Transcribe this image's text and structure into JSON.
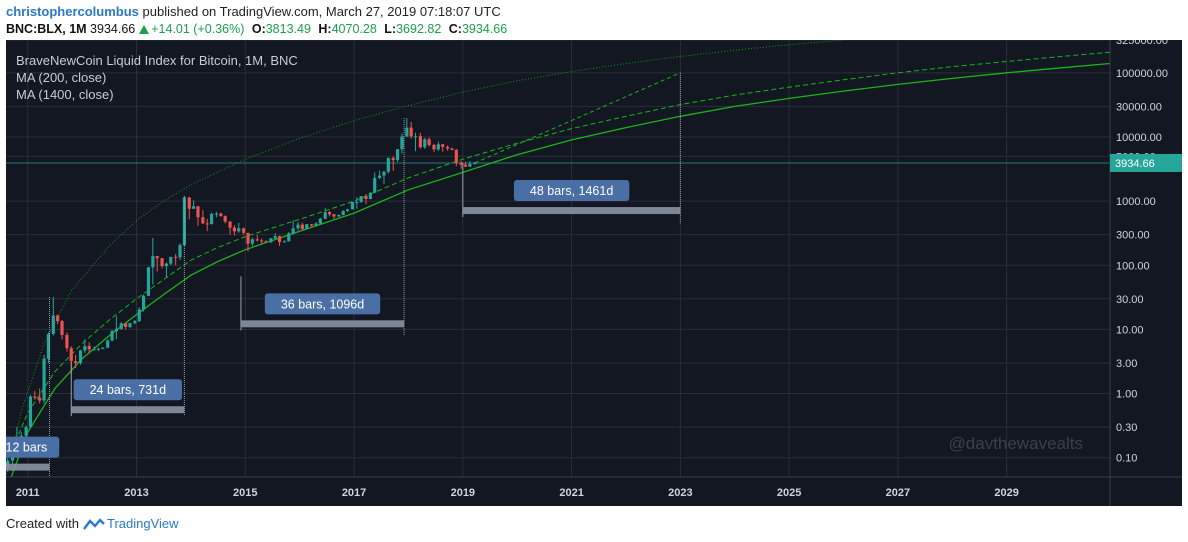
{
  "header": {
    "author": "christophercolumbus",
    "published_text": "published on TradingView.com, March 27, 2019 07:18:07 UTC",
    "symbol": "BNC:BLX, 1M",
    "last": "3934.66",
    "change": "+14.01 (+0.36%)",
    "open_label": "O:",
    "open": "3813.49",
    "high_label": "H:",
    "high": "4070.28",
    "low_label": "L:",
    "low": "3692.82",
    "close_label": "C:",
    "close": "3934.66"
  },
  "legend": {
    "title": "BraveNewCoin Liquid Index for Bitcoin, 1M, BNC",
    "ma1": "MA (200, close)",
    "ma2": "MA (1400, close)"
  },
  "watermark": "@davthewavealts",
  "footer": {
    "created_with": "Created with",
    "brand": "TradingView"
  },
  "colors": {
    "background": "#131722",
    "grid": "#2a2e39",
    "up": "#26a69a",
    "down": "#ef5350",
    "ma_line": "#1ab31a",
    "measure_label": "#4a6fa5",
    "measure_bar": "#8a93a3",
    "price_tag": "#26a69a",
    "text": "#c0c4cc",
    "axis_text": "#d1d4dc"
  },
  "chart_data": {
    "type": "candlestick",
    "y_scale": "log",
    "ylim": [
      0.05,
      325000
    ],
    "y_ticks": [
      "325000.00",
      "100000.00",
      "30000.00",
      "10000.00",
      "5000.00",
      "1000.00",
      "300.00",
      "100.00",
      "30.00",
      "10.00",
      "3.00",
      "1.00",
      "0.30",
      "0.10"
    ],
    "x_ticks": [
      "2011",
      "2013",
      "2015",
      "2017",
      "2019",
      "2021",
      "2023",
      "2025",
      "2027",
      "2029"
    ],
    "xlim": [
      2010.6,
      2030.9
    ],
    "last_price_tag": "3934.66",
    "last_price": 3934.66,
    "candles": [
      {
        "t": 2010.55,
        "o": 0.06,
        "h": 0.08,
        "l": 0.05,
        "c": 0.07
      },
      {
        "t": 2010.63,
        "o": 0.07,
        "h": 0.1,
        "l": 0.06,
        "c": 0.09
      },
      {
        "t": 2010.72,
        "o": 0.09,
        "h": 0.12,
        "l": 0.08,
        "c": 0.11
      },
      {
        "t": 2010.8,
        "o": 0.11,
        "h": 0.3,
        "l": 0.1,
        "c": 0.2
      },
      {
        "t": 2010.88,
        "o": 0.2,
        "h": 0.25,
        "l": 0.18,
        "c": 0.22
      },
      {
        "t": 2010.97,
        "o": 0.22,
        "h": 0.32,
        "l": 0.2,
        "c": 0.3
      },
      {
        "t": 2011.05,
        "o": 0.3,
        "h": 0.95,
        "l": 0.28,
        "c": 0.9
      },
      {
        "t": 2011.13,
        "o": 0.9,
        "h": 1.1,
        "l": 0.8,
        "c": 0.86
      },
      {
        "t": 2011.22,
        "o": 0.86,
        "h": 1.2,
        "l": 0.7,
        "c": 0.78
      },
      {
        "t": 2011.3,
        "o": 0.78,
        "h": 4.0,
        "l": 0.7,
        "c": 3.5
      },
      {
        "t": 2011.38,
        "o": 3.5,
        "h": 9.0,
        "l": 3.0,
        "c": 8.5
      },
      {
        "t": 2011.47,
        "o": 8.5,
        "h": 32.0,
        "l": 8.0,
        "c": 16.5
      },
      {
        "t": 2011.55,
        "o": 16.5,
        "h": 17.0,
        "l": 12.0,
        "c": 13.5
      },
      {
        "t": 2011.63,
        "o": 13.5,
        "h": 14.0,
        "l": 7.0,
        "c": 8.2
      },
      {
        "t": 2011.72,
        "o": 8.2,
        "h": 9.0,
        "l": 4.5,
        "c": 5.1
      },
      {
        "t": 2011.8,
        "o": 5.1,
        "h": 5.5,
        "l": 2.0,
        "c": 3.2
      },
      {
        "t": 2011.88,
        "o": 3.2,
        "h": 4.0,
        "l": 2.5,
        "c": 3.0
      },
      {
        "t": 2011.97,
        "o": 3.0,
        "h": 4.8,
        "l": 2.8,
        "c": 4.7
      },
      {
        "t": 2012.05,
        "o": 4.7,
        "h": 7.0,
        "l": 4.3,
        "c": 5.5
      },
      {
        "t": 2012.13,
        "o": 5.5,
        "h": 6.3,
        "l": 4.2,
        "c": 4.9
      },
      {
        "t": 2012.22,
        "o": 4.9,
        "h": 5.4,
        "l": 4.7,
        "c": 4.9
      },
      {
        "t": 2012.3,
        "o": 4.9,
        "h": 5.2,
        "l": 4.6,
        "c": 5.0
      },
      {
        "t": 2012.38,
        "o": 5.0,
        "h": 5.3,
        "l": 4.9,
        "c": 5.2
      },
      {
        "t": 2012.47,
        "o": 5.2,
        "h": 7.0,
        "l": 5.1,
        "c": 6.7
      },
      {
        "t": 2012.55,
        "o": 6.7,
        "h": 9.8,
        "l": 6.5,
        "c": 9.4
      },
      {
        "t": 2012.63,
        "o": 9.4,
        "h": 16.0,
        "l": 7.0,
        "c": 10.2
      },
      {
        "t": 2012.72,
        "o": 10.2,
        "h": 13.0,
        "l": 9.8,
        "c": 12.4
      },
      {
        "t": 2012.8,
        "o": 12.4,
        "h": 12.5,
        "l": 9.9,
        "c": 10.9
      },
      {
        "t": 2012.88,
        "o": 10.9,
        "h": 12.7,
        "l": 10.5,
        "c": 12.5
      },
      {
        "t": 2012.97,
        "o": 12.5,
        "h": 14.0,
        "l": 12.0,
        "c": 13.5
      },
      {
        "t": 2013.05,
        "o": 13.5,
        "h": 22.0,
        "l": 13.0,
        "c": 20.4
      },
      {
        "t": 2013.13,
        "o": 20.4,
        "h": 35.0,
        "l": 19.0,
        "c": 33.4
      },
      {
        "t": 2013.22,
        "o": 33.4,
        "h": 95.0,
        "l": 33.0,
        "c": 93.0
      },
      {
        "t": 2013.3,
        "o": 93.0,
        "h": 266.0,
        "l": 50.0,
        "c": 139.0
      },
      {
        "t": 2013.38,
        "o": 139.0,
        "h": 140.0,
        "l": 80.0,
        "c": 129.0
      },
      {
        "t": 2013.47,
        "o": 129.0,
        "h": 130.0,
        "l": 90.0,
        "c": 97.0
      },
      {
        "t": 2013.55,
        "o": 97.0,
        "h": 111.0,
        "l": 65.0,
        "c": 106.0
      },
      {
        "t": 2013.63,
        "o": 106.0,
        "h": 136.0,
        "l": 100.0,
        "c": 135.0
      },
      {
        "t": 2013.72,
        "o": 135.0,
        "h": 150.0,
        "l": 100.0,
        "c": 133.0
      },
      {
        "t": 2013.8,
        "o": 133.0,
        "h": 220.0,
        "l": 120.0,
        "c": 206.0
      },
      {
        "t": 2013.88,
        "o": 206.0,
        "h": 1200.0,
        "l": 200.0,
        "c": 1140.0
      },
      {
        "t": 2013.97,
        "o": 1140.0,
        "h": 1160.0,
        "l": 520.0,
        "c": 760.0
      },
      {
        "t": 2014.05,
        "o": 760.0,
        "h": 1030.0,
        "l": 750.0,
        "c": 830.0
      },
      {
        "t": 2014.13,
        "o": 830.0,
        "h": 840.0,
        "l": 410.0,
        "c": 560.0
      },
      {
        "t": 2014.22,
        "o": 560.0,
        "h": 720.0,
        "l": 440.0,
        "c": 450.0
      },
      {
        "t": 2014.3,
        "o": 450.0,
        "h": 530.0,
        "l": 340.0,
        "c": 440.0
      },
      {
        "t": 2014.38,
        "o": 440.0,
        "h": 660.0,
        "l": 430.0,
        "c": 630.0
      },
      {
        "t": 2014.47,
        "o": 630.0,
        "h": 680.0,
        "l": 560.0,
        "c": 640.0
      },
      {
        "t": 2014.55,
        "o": 640.0,
        "h": 660.0,
        "l": 570.0,
        "c": 585.0
      },
      {
        "t": 2014.63,
        "o": 585.0,
        "h": 600.0,
        "l": 450.0,
        "c": 480.0
      },
      {
        "t": 2014.72,
        "o": 480.0,
        "h": 490.0,
        "l": 300.0,
        "c": 386.0
      },
      {
        "t": 2014.8,
        "o": 386.0,
        "h": 420.0,
        "l": 290.0,
        "c": 338.0
      },
      {
        "t": 2014.88,
        "o": 338.0,
        "h": 460.0,
        "l": 320.0,
        "c": 377.0
      },
      {
        "t": 2014.97,
        "o": 377.0,
        "h": 385.0,
        "l": 300.0,
        "c": 320.0
      },
      {
        "t": 2015.05,
        "o": 320.0,
        "h": 320.0,
        "l": 165.0,
        "c": 217.0
      },
      {
        "t": 2015.13,
        "o": 217.0,
        "h": 270.0,
        "l": 200.0,
        "c": 254.0
      },
      {
        "t": 2015.22,
        "o": 254.0,
        "h": 300.0,
        "l": 235.0,
        "c": 244.0
      },
      {
        "t": 2015.3,
        "o": 244.0,
        "h": 260.0,
        "l": 215.0,
        "c": 236.0
      },
      {
        "t": 2015.38,
        "o": 236.0,
        "h": 247.0,
        "l": 225.0,
        "c": 230.0
      },
      {
        "t": 2015.47,
        "o": 230.0,
        "h": 267.0,
        "l": 220.0,
        "c": 263.0
      },
      {
        "t": 2015.55,
        "o": 263.0,
        "h": 316.0,
        "l": 255.0,
        "c": 284.0
      },
      {
        "t": 2015.63,
        "o": 284.0,
        "h": 290.0,
        "l": 200.0,
        "c": 230.0
      },
      {
        "t": 2015.72,
        "o": 230.0,
        "h": 245.0,
        "l": 225.0,
        "c": 236.0
      },
      {
        "t": 2015.8,
        "o": 236.0,
        "h": 330.0,
        "l": 235.0,
        "c": 314.0
      },
      {
        "t": 2015.88,
        "o": 314.0,
        "h": 500.0,
        "l": 300.0,
        "c": 377.0
      },
      {
        "t": 2015.97,
        "o": 377.0,
        "h": 470.0,
        "l": 350.0,
        "c": 430.0
      },
      {
        "t": 2016.05,
        "o": 430.0,
        "h": 460.0,
        "l": 350.0,
        "c": 368.0
      },
      {
        "t": 2016.13,
        "o": 368.0,
        "h": 440.0,
        "l": 365.0,
        "c": 437.0
      },
      {
        "t": 2016.22,
        "o": 437.0,
        "h": 440.0,
        "l": 400.0,
        "c": 416.0
      },
      {
        "t": 2016.3,
        "o": 416.0,
        "h": 470.0,
        "l": 410.0,
        "c": 448.0
      },
      {
        "t": 2016.38,
        "o": 448.0,
        "h": 550.0,
        "l": 440.0,
        "c": 531.0
      },
      {
        "t": 2016.47,
        "o": 531.0,
        "h": 780.0,
        "l": 520.0,
        "c": 673.0
      },
      {
        "t": 2016.55,
        "o": 673.0,
        "h": 700.0,
        "l": 580.0,
        "c": 624.0
      },
      {
        "t": 2016.63,
        "o": 624.0,
        "h": 630.0,
        "l": 530.0,
        "c": 575.0
      },
      {
        "t": 2016.72,
        "o": 575.0,
        "h": 620.0,
        "l": 570.0,
        "c": 608.0
      },
      {
        "t": 2016.8,
        "o": 608.0,
        "h": 720.0,
        "l": 600.0,
        "c": 700.0
      },
      {
        "t": 2016.88,
        "o": 700.0,
        "h": 760.0,
        "l": 680.0,
        "c": 745.0
      },
      {
        "t": 2016.97,
        "o": 745.0,
        "h": 975.0,
        "l": 740.0,
        "c": 964.0
      },
      {
        "t": 2017.05,
        "o": 964.0,
        "h": 1150.0,
        "l": 760.0,
        "c": 970.0
      },
      {
        "t": 2017.13,
        "o": 970.0,
        "h": 1200.0,
        "l": 940.0,
        "c": 1190.0
      },
      {
        "t": 2017.22,
        "o": 1190.0,
        "h": 1290.0,
        "l": 900.0,
        "c": 1080.0
      },
      {
        "t": 2017.3,
        "o": 1080.0,
        "h": 1380.0,
        "l": 1070.0,
        "c": 1350.0
      },
      {
        "t": 2017.38,
        "o": 1350.0,
        "h": 2800.0,
        "l": 1340.0,
        "c": 2300.0
      },
      {
        "t": 2017.47,
        "o": 2300.0,
        "h": 3000.0,
        "l": 2200.0,
        "c": 2500.0
      },
      {
        "t": 2017.55,
        "o": 2500.0,
        "h": 2950.0,
        "l": 1850.0,
        "c": 2870.0
      },
      {
        "t": 2017.63,
        "o": 2870.0,
        "h": 4770.0,
        "l": 2700.0,
        "c": 4730.0
      },
      {
        "t": 2017.72,
        "o": 4730.0,
        "h": 4980.0,
        "l": 2980.0,
        "c": 4360.0
      },
      {
        "t": 2017.8,
        "o": 4360.0,
        "h": 6470.0,
        "l": 4100.0,
        "c": 6450.0
      },
      {
        "t": 2017.88,
        "o": 6450.0,
        "h": 11300.0,
        "l": 5500.0,
        "c": 10200.0
      },
      {
        "t": 2017.97,
        "o": 10200.0,
        "h": 19700.0,
        "l": 10000.0,
        "c": 14000.0
      },
      {
        "t": 2018.05,
        "o": 14000.0,
        "h": 17200.0,
        "l": 9400.0,
        "c": 10200.0
      },
      {
        "t": 2018.13,
        "o": 10200.0,
        "h": 11700.0,
        "l": 6000.0,
        "c": 10300.0
      },
      {
        "t": 2018.22,
        "o": 10300.0,
        "h": 11600.0,
        "l": 6600.0,
        "c": 6900.0
      },
      {
        "t": 2018.3,
        "o": 6900.0,
        "h": 9700.0,
        "l": 6500.0,
        "c": 9200.0
      },
      {
        "t": 2018.38,
        "o": 9200.0,
        "h": 9900.0,
        "l": 7100.0,
        "c": 7500.0
      },
      {
        "t": 2018.47,
        "o": 7500.0,
        "h": 7800.0,
        "l": 5800.0,
        "c": 6400.0
      },
      {
        "t": 2018.55,
        "o": 6400.0,
        "h": 8500.0,
        "l": 6100.0,
        "c": 7700.0
      },
      {
        "t": 2018.63,
        "o": 7700.0,
        "h": 7800.0,
        "l": 5900.0,
        "c": 7000.0
      },
      {
        "t": 2018.72,
        "o": 7000.0,
        "h": 7400.0,
        "l": 6100.0,
        "c": 6600.0
      },
      {
        "t": 2018.8,
        "o": 6600.0,
        "h": 6800.0,
        "l": 6200.0,
        "c": 6300.0
      },
      {
        "t": 2018.88,
        "o": 6300.0,
        "h": 6500.0,
        "l": 3500.0,
        "c": 4000.0
      },
      {
        "t": 2018.97,
        "o": 4000.0,
        "h": 4200.0,
        "l": 3200.0,
        "c": 3700.0
      },
      {
        "t": 2019.05,
        "o": 3700.0,
        "h": 4100.0,
        "l": 3400.0,
        "c": 3450.0
      },
      {
        "t": 2019.13,
        "o": 3450.0,
        "h": 4200.0,
        "l": 3400.0,
        "c": 3813.0
      },
      {
        "t": 2019.22,
        "o": 3813.49,
        "h": 4070.28,
        "l": 3692.82,
        "c": 3934.66
      }
    ],
    "ma200": [
      [
        2010.6,
        0.03
      ],
      [
        2011.0,
        0.25
      ],
      [
        2011.5,
        1.2
      ],
      [
        2012.0,
        3.5
      ],
      [
        2012.5,
        8.0
      ],
      [
        2013.0,
        17.0
      ],
      [
        2013.5,
        35.0
      ],
      [
        2014.0,
        70.0
      ],
      [
        2014.5,
        115.0
      ],
      [
        2015.0,
        175.0
      ],
      [
        2016.0,
        340.0
      ],
      [
        2017.0,
        650.0
      ],
      [
        2018.0,
        1500.0
      ],
      [
        2019.0,
        2800.0
      ],
      [
        2020.0,
        5300.0
      ],
      [
        2021.0,
        9000.0
      ],
      [
        2022.0,
        14000.0
      ],
      [
        2023.0,
        21000.0
      ],
      [
        2024.0,
        30000.0
      ],
      [
        2025.0,
        40000.0
      ],
      [
        2026.0,
        52000.0
      ],
      [
        2027.0,
        66000.0
      ],
      [
        2028.0,
        82000.0
      ],
      [
        2029.0,
        100000.0
      ],
      [
        2030.0,
        120000.0
      ],
      [
        2030.9,
        140000.0
      ]
    ],
    "ma1400": [
      [
        2010.6,
        0.08
      ],
      [
        2011.0,
        0.5
      ],
      [
        2011.5,
        2.2
      ],
      [
        2012.0,
        6.0
      ],
      [
        2012.5,
        14.0
      ],
      [
        2013.0,
        30.0
      ],
      [
        2013.5,
        60.0
      ],
      [
        2014.0,
        120.0
      ],
      [
        2014.5,
        190.0
      ],
      [
        2015.0,
        280.0
      ],
      [
        2016.0,
        520.0
      ],
      [
        2017.0,
        1000.0
      ],
      [
        2018.0,
        2300.0
      ],
      [
        2019.0,
        4500.0
      ],
      [
        2020.0,
        8000.0
      ],
      [
        2021.0,
        13500.0
      ],
      [
        2022.0,
        21000.0
      ],
      [
        2023.0,
        32000.0
      ],
      [
        2024.0,
        45000.0
      ],
      [
        2025.0,
        60000.0
      ],
      [
        2026.0,
        78000.0
      ],
      [
        2027.0,
        100000.0
      ],
      [
        2028.0,
        125000.0
      ],
      [
        2029.0,
        150000.0
      ],
      [
        2030.0,
        180000.0
      ],
      [
        2030.9,
        210000.0
      ]
    ],
    "upper_curve": [
      [
        2010.6,
        0.05
      ],
      [
        2010.9,
        0.6
      ],
      [
        2011.3,
        6.0
      ],
      [
        2011.8,
        40.0
      ],
      [
        2012.5,
        200.0
      ],
      [
        2013.0,
        500.0
      ],
      [
        2013.5,
        1000.0
      ],
      [
        2014.0,
        1800.0
      ],
      [
        2015.0,
        4500.0
      ],
      [
        2016.0,
        9500.0
      ],
      [
        2017.0,
        18000.0
      ],
      [
        2018.0,
        31000.0
      ],
      [
        2019.0,
        50000.0
      ],
      [
        2020.0,
        75000.0
      ],
      [
        2021.0,
        105000.0
      ],
      [
        2022.0,
        140000.0
      ],
      [
        2023.0,
        180000.0
      ],
      [
        2024.0,
        225000.0
      ],
      [
        2025.0,
        275000.0
      ],
      [
        2026.0,
        325000.0
      ],
      [
        2026.8,
        370000.0
      ]
    ],
    "projection": [
      [
        2019.22,
        3934.66
      ],
      [
        2023.0,
        100000.0
      ]
    ],
    "measures": [
      {
        "label": "12 bars",
        "x_start": 2010.55,
        "x_end": 2011.4,
        "y_bar": 0.07,
        "vline_top": 32.0,
        "vline_bottom": 0.05
      },
      {
        "label": "24 bars, 731d",
        "x_start": 2011.8,
        "x_end": 2013.88,
        "y_bar": 0.55,
        "vline_top": 1200.0,
        "vline_bottom": 0.45
      },
      {
        "label": "36 bars, 1096d",
        "x_start": 2014.92,
        "x_end": 2017.92,
        "y_bar": 12.0,
        "vline_top": 19700.0,
        "vline_bottom": 8.0
      },
      {
        "label": "48 bars, 1461d",
        "x_start": 2019.0,
        "x_end": 2023.0,
        "y_bar": 700.0,
        "vline_top": 100000.0,
        "vline_bottom": 450.0
      }
    ]
  }
}
